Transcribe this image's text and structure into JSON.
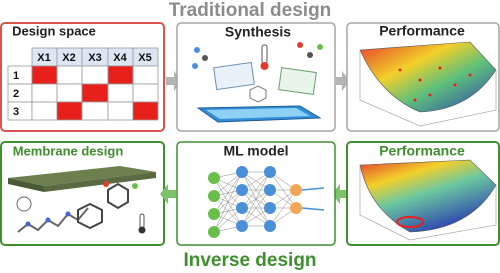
{
  "header": {
    "title": "Traditional design",
    "footer": "Inverse design"
  },
  "panels": {
    "design_space": {
      "title": "Design space",
      "columns": [
        "X1",
        "X2",
        "X3",
        "X4",
        "X5"
      ],
      "rows": [
        "1",
        "2",
        "3"
      ]
    },
    "synthesis": {
      "title": "Synthesis"
    },
    "performance_top": {
      "title": "Performance"
    },
    "membrane_design": {
      "title": "Membrane design"
    },
    "ml_model": {
      "title": "ML model"
    },
    "performance_bottom": {
      "title": "Performance"
    }
  }
}
